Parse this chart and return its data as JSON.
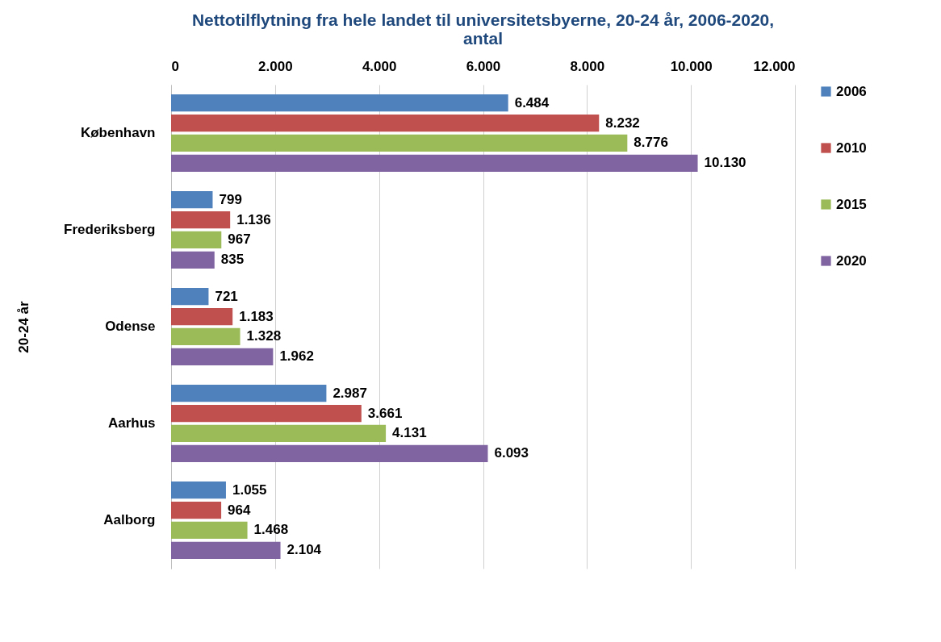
{
  "chart_data": {
    "type": "bar",
    "orientation": "horizontal",
    "title": "Nettotilflytning fra hele landet til universitetsbyerne, 20-24 år, 2006-2020, antal",
    "ylabel": "20-24 år",
    "categories": [
      "København",
      "Frederiksberg",
      "Odense",
      "Aarhus",
      "Aalborg"
    ],
    "series": [
      {
        "name": "2006",
        "color": "#4f81bd",
        "values": [
          6484,
          799,
          721,
          2987,
          1055
        ],
        "value_labels": [
          "6.484",
          "799",
          "721",
          "2.987",
          "1.055"
        ]
      },
      {
        "name": "2010",
        "color": "#c0504d",
        "values": [
          8232,
          1136,
          1183,
          3661,
          964
        ],
        "value_labels": [
          "8.232",
          "1.136",
          "1.183",
          "3.661",
          "964"
        ]
      },
      {
        "name": "2015",
        "color": "#9bbb59",
        "values": [
          8776,
          967,
          1328,
          4131,
          1468
        ],
        "value_labels": [
          "8.776",
          "967",
          "1.328",
          "4.131",
          "1.468"
        ]
      },
      {
        "name": "2020",
        "color": "#8064a2",
        "values": [
          10130,
          835,
          1962,
          6093,
          2104
        ],
        "value_labels": [
          "10.130",
          "835",
          "1.962",
          "6.093",
          "2.104"
        ]
      }
    ],
    "xlim": [
      0,
      12000
    ],
    "xticks": [
      0,
      {
        "value": 2000,
        "label": "2.000"
      },
      {
        "value": 4000,
        "label": "4.000"
      },
      {
        "value": 6000,
        "label": "6.000"
      },
      {
        "value": 8000,
        "label": "8.000"
      },
      {
        "value": 10000,
        "label": "10.000"
      },
      {
        "value": 12000,
        "label": "12.000"
      }
    ],
    "grid": "x",
    "legend": "right"
  }
}
